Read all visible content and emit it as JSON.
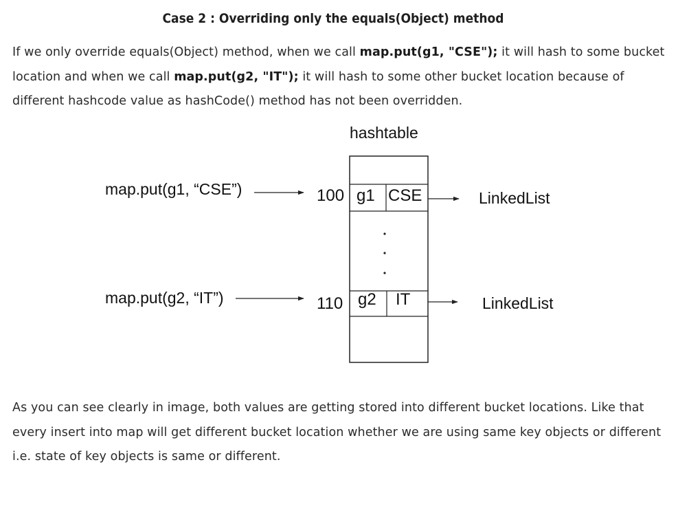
{
  "title": "Case 2 : Overriding only the equals(Object) method",
  "intro": {
    "t1": "If we only override equals(Object) method, when we call ",
    "b1": "map.put(g1, \"CSE\");",
    "t2": " it will hash to some bucket location and when we call ",
    "b2": "map.put(g2, \"IT\");",
    "t3": " it will hash to some other bucket location because of different hashcode value as hashCode() method has not been overridden."
  },
  "diagram": {
    "header": "hashtable",
    "entries": [
      {
        "call": "map.put(g1, “CSE”)",
        "hash": "100",
        "key": "g1",
        "value": "CSE",
        "list": "LinkedList"
      },
      {
        "call": "map.put(g2, “IT”)",
        "hash": "110",
        "key": "g2",
        "value": "IT",
        "list": "LinkedList"
      }
    ]
  },
  "conclusion": "As you can see clearly in image, both values are getting stored into different bucket locations. Like that every insert into map will get different bucket location whether we are using same key objects or different i.e. state of key objects is same or different."
}
